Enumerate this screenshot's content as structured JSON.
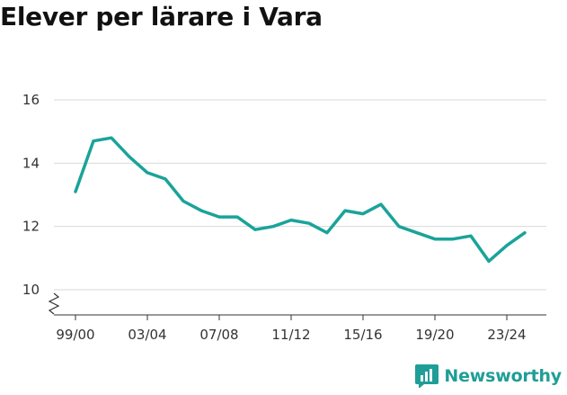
{
  "page": {
    "title": "Elever per lärare i Vara"
  },
  "brand": {
    "name": "Newsworthy",
    "color": "#1f9e97"
  },
  "chart_data": {
    "type": "line",
    "title": "Elever per lärare i Vara",
    "xlabel": "",
    "ylabel": "",
    "ylim": [
      10,
      16
    ],
    "yticks": [
      10,
      12,
      14,
      16
    ],
    "xticks": [
      "99/00",
      "03/04",
      "07/08",
      "11/12",
      "15/16",
      "19/20",
      "23/24"
    ],
    "grid": true,
    "line_color": "#1aa39a",
    "series": [
      {
        "name": "Elever per lärare",
        "x": [
          "99/00",
          "00/01",
          "01/02",
          "02/03",
          "03/04",
          "04/05",
          "05/06",
          "06/07",
          "07/08",
          "08/09",
          "09/10",
          "10/11",
          "11/12",
          "12/13",
          "13/14",
          "14/15",
          "15/16",
          "16/17",
          "17/18",
          "18/19",
          "19/20",
          "20/21",
          "21/22",
          "22/23",
          "23/24",
          "24/25"
        ],
        "values": [
          13.1,
          14.7,
          14.8,
          14.2,
          13.7,
          13.5,
          12.8,
          12.5,
          12.3,
          12.3,
          11.9,
          12.0,
          12.2,
          12.1,
          11.8,
          12.5,
          12.4,
          12.7,
          12.0,
          11.8,
          11.6,
          11.6,
          11.7,
          10.9,
          11.4,
          11.8
        ]
      }
    ]
  }
}
